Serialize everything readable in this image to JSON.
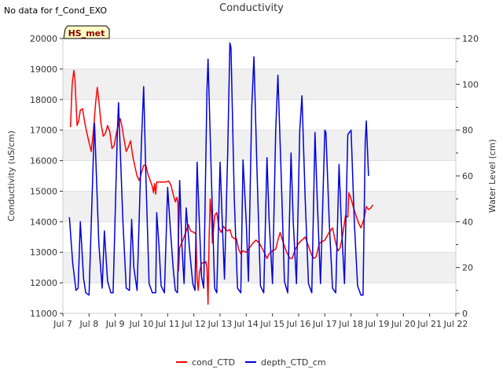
{
  "header": {
    "note": "No data for f_Cond_EXO",
    "title": "Conductivity"
  },
  "badge": {
    "label": "HS_met"
  },
  "colors": {
    "cond": "#ff0000",
    "depth": "#0000dd",
    "band": "#f0f0f0",
    "badge_fill": "#ffffc8",
    "badge_border": "#000000"
  },
  "chart_data": {
    "type": "line",
    "title": "Conductivity",
    "xlabel": "",
    "ylabel": "Conductivity (uS/cm)",
    "y2label": "Water Level (cm)",
    "xlim": [
      "2024-07-07",
      "2024-07-22"
    ],
    "ylim": [
      11000,
      20000
    ],
    "y2lim": [
      0,
      120
    ],
    "x_ticks": [
      "Jul 7",
      "Jul 8",
      "Jul 9",
      "Jul 10",
      "Jul 11",
      "Jul 12",
      "Jul 13",
      "Jul 14",
      "Jul 15",
      "Jul 16",
      "Jul 17",
      "Jul 18",
      "Jul 19",
      "Jul 20",
      "Jul 21",
      "Jul 22"
    ],
    "y_ticks": [
      "11000",
      "12000",
      "13000",
      "14000",
      "15000",
      "16000",
      "17000",
      "18000",
      "19000",
      "20000"
    ],
    "y2_ticks": [
      "0",
      "20",
      "40",
      "60",
      "80",
      "100",
      "120"
    ],
    "grid": true,
    "legend": "bottom-center",
    "series": [
      {
        "name": "cond_CTD",
        "axis": "left",
        "points": [
          [
            "2024-07-07 07:00",
            17100
          ],
          [
            "2024-07-07 08:30",
            18500
          ],
          [
            "2024-07-07 10:00",
            18950
          ],
          [
            "2024-07-07 11:00",
            18700
          ],
          [
            "2024-07-07 13:00",
            17150
          ],
          [
            "2024-07-07 14:30",
            17300
          ],
          [
            "2024-07-07 16:00",
            17650
          ],
          [
            "2024-07-07 18:00",
            17700
          ],
          [
            "2024-07-07 20:00",
            17250
          ],
          [
            "2024-07-07 22:00",
            16900
          ],
          [
            "2024-07-08 00:00",
            16600
          ],
          [
            "2024-07-08 02:00",
            16300
          ],
          [
            "2024-07-08 04:00",
            17000
          ],
          [
            "2024-07-08 06:00",
            17900
          ],
          [
            "2024-07-08 07:30",
            18400
          ],
          [
            "2024-07-08 09:00",
            17950
          ],
          [
            "2024-07-08 11:00",
            17200
          ],
          [
            "2024-07-08 13:00",
            16800
          ],
          [
            "2024-07-08 15:00",
            16900
          ],
          [
            "2024-07-08 17:00",
            17150
          ],
          [
            "2024-07-08 19:00",
            16950
          ],
          [
            "2024-07-08 21:00",
            16400
          ],
          [
            "2024-07-08 23:00",
            16500
          ],
          [
            "2024-07-09 01:00",
            16900
          ],
          [
            "2024-07-09 03:00",
            17200
          ],
          [
            "2024-07-09 04:30",
            17380
          ],
          [
            "2024-07-09 06:00",
            17150
          ],
          [
            "2024-07-09 08:00",
            16700
          ],
          [
            "2024-07-09 10:00",
            16300
          ],
          [
            "2024-07-09 12:00",
            16450
          ],
          [
            "2024-07-09 14:00",
            16650
          ],
          [
            "2024-07-09 16:00",
            16150
          ],
          [
            "2024-07-09 18:00",
            15800
          ],
          [
            "2024-07-09 20:00",
            15500
          ],
          [
            "2024-07-09 22:00",
            15350
          ],
          [
            "2024-07-10 00:00",
            15600
          ],
          [
            "2024-07-10 02:00",
            15850
          ],
          [
            "2024-07-10 04:00",
            15850
          ],
          [
            "2024-07-10 06:00",
            15550
          ],
          [
            "2024-07-10 08:00",
            15350
          ],
          [
            "2024-07-10 10:00",
            15150
          ],
          [
            "2024-07-10 11:00",
            14950
          ],
          [
            "2024-07-10 12:00",
            15250
          ],
          [
            "2024-07-10 13:00",
            14900
          ],
          [
            "2024-07-10 14:00",
            15300
          ],
          [
            "2024-07-10 18:00",
            15300
          ],
          [
            "2024-07-10 22:00",
            15300
          ],
          [
            "2024-07-11 01:00",
            15330
          ],
          [
            "2024-07-11 03:00",
            15200
          ],
          [
            "2024-07-11 05:00",
            14900
          ],
          [
            "2024-07-11 07:00",
            14650
          ],
          [
            "2024-07-11 08:30",
            14800
          ],
          [
            "2024-07-11 09:30",
            14600
          ],
          [
            "2024-07-11 10:00",
            12400
          ],
          [
            "2024-07-11 11:00",
            13150
          ],
          [
            "2024-07-11 14:00",
            13400
          ],
          [
            "2024-07-11 17:00",
            13700
          ],
          [
            "2024-07-11 19:00",
            13900
          ],
          [
            "2024-07-11 21:00",
            13700
          ],
          [
            "2024-07-12 00:00",
            13650
          ],
          [
            "2024-07-12 02:00",
            13600
          ],
          [
            "2024-07-12 03:00",
            12100
          ],
          [
            "2024-07-12 04:00",
            11750
          ],
          [
            "2024-07-12 05:00",
            12300
          ],
          [
            "2024-07-12 07:00",
            12650
          ],
          [
            "2024-07-12 10:00",
            12650
          ],
          [
            "2024-07-12 11:00",
            12700
          ],
          [
            "2024-07-12 12:00",
            12500
          ],
          [
            "2024-07-12 13:00",
            11300
          ],
          [
            "2024-07-12 14:00",
            13500
          ],
          [
            "2024-07-12 15:00",
            14750
          ],
          [
            "2024-07-12 16:00",
            14300
          ],
          [
            "2024-07-12 17:00",
            13300
          ],
          [
            "2024-07-12 19:00",
            14200
          ],
          [
            "2024-07-12 21:00",
            14300
          ],
          [
            "2024-07-12 23:00",
            13800
          ],
          [
            "2024-07-13 01:00",
            13650
          ],
          [
            "2024-07-13 03:00",
            13850
          ],
          [
            "2024-07-13 05:00",
            13750
          ],
          [
            "2024-07-13 07:00",
            13700
          ],
          [
            "2024-07-13 09:00",
            13750
          ],
          [
            "2024-07-13 11:00",
            13500
          ],
          [
            "2024-07-13 13:00",
            13450
          ],
          [
            "2024-07-13 15:00",
            13450
          ],
          [
            "2024-07-13 17:00",
            13100
          ],
          [
            "2024-07-13 19:00",
            12950
          ],
          [
            "2024-07-13 21:00",
            13050
          ],
          [
            "2024-07-14 00:00",
            13000
          ],
          [
            "2024-07-14 03:00",
            13150
          ],
          [
            "2024-07-14 06:00",
            13300
          ],
          [
            "2024-07-14 09:00",
            13400
          ],
          [
            "2024-07-14 12:00",
            13300
          ],
          [
            "2024-07-14 15:00",
            13100
          ],
          [
            "2024-07-14 17:00",
            12950
          ],
          [
            "2024-07-14 19:00",
            12800
          ],
          [
            "2024-07-14 21:00",
            12950
          ],
          [
            "2024-07-15 00:00",
            13050
          ],
          [
            "2024-07-15 03:00",
            13100
          ],
          [
            "2024-07-15 05:00",
            13400
          ],
          [
            "2024-07-15 07:00",
            13650
          ],
          [
            "2024-07-15 10:00",
            13300
          ],
          [
            "2024-07-15 13:00",
            13000
          ],
          [
            "2024-07-15 16:00",
            12800
          ],
          [
            "2024-07-15 18:00",
            12800
          ],
          [
            "2024-07-15 21:00",
            13100
          ],
          [
            "2024-07-16 00:00",
            13300
          ],
          [
            "2024-07-16 03:00",
            13400
          ],
          [
            "2024-07-16 06:00",
            13500
          ],
          [
            "2024-07-16 09:00",
            13200
          ],
          [
            "2024-07-16 12:00",
            12900
          ],
          [
            "2024-07-16 14:00",
            12800
          ],
          [
            "2024-07-16 16:00",
            12850
          ],
          [
            "2024-07-16 19:00",
            13300
          ],
          [
            "2024-07-17 00:00",
            13400
          ],
          [
            "2024-07-17 04:00",
            13650
          ],
          [
            "2024-07-17 07:00",
            13800
          ],
          [
            "2024-07-17 10:00",
            13300
          ],
          [
            "2024-07-17 12:00",
            13050
          ],
          [
            "2024-07-17 14:00",
            13150
          ],
          [
            "2024-07-17 16:00",
            13500
          ],
          [
            "2024-07-17 19:00",
            14200
          ],
          [
            "2024-07-17 21:00",
            14150
          ],
          [
            "2024-07-17 22:00",
            14950
          ],
          [
            "2024-07-18 00:00",
            14750
          ],
          [
            "2024-07-18 02:00",
            14500
          ],
          [
            "2024-07-18 05:00",
            14150
          ],
          [
            "2024-07-18 07:00",
            13950
          ],
          [
            "2024-07-18 09:00",
            13800
          ],
          [
            "2024-07-18 12:00",
            14100
          ],
          [
            "2024-07-18 14:00",
            14500
          ],
          [
            "2024-07-18 16:00",
            14400
          ],
          [
            "2024-07-18 18:00",
            14450
          ],
          [
            "2024-07-18 20:00",
            14550
          ]
        ]
      },
      {
        "name": "depth_CTD_cm",
        "axis": "right",
        "points": [
          [
            "2024-07-07 06:00",
            42
          ],
          [
            "2024-07-07 09:00",
            22
          ],
          [
            "2024-07-07 12:00",
            10
          ],
          [
            "2024-07-07 14:00",
            11
          ],
          [
            "2024-07-07 16:00",
            40
          ],
          [
            "2024-07-07 19:00",
            15
          ],
          [
            "2024-07-07 21:00",
            9
          ],
          [
            "2024-07-08 00:00",
            8
          ],
          [
            "2024-07-08 04:00",
            70
          ],
          [
            "2024-07-08 05:00",
            83
          ],
          [
            "2024-07-08 09:00",
            30
          ],
          [
            "2024-07-08 12:00",
            11
          ],
          [
            "2024-07-08 14:00",
            36
          ],
          [
            "2024-07-08 17:00",
            14
          ],
          [
            "2024-07-08 20:00",
            9
          ],
          [
            "2024-07-08 22:00",
            9
          ],
          [
            "2024-07-09 02:00",
            80
          ],
          [
            "2024-07-09 03:00",
            92
          ],
          [
            "2024-07-09 07:00",
            40
          ],
          [
            "2024-07-09 10:00",
            11
          ],
          [
            "2024-07-09 13:00",
            10
          ],
          [
            "2024-07-09 15:00",
            41
          ],
          [
            "2024-07-09 17:00",
            20
          ],
          [
            "2024-07-09 20:00",
            10
          ],
          [
            "2024-07-10 00:00",
            75
          ],
          [
            "2024-07-10 02:00",
            99
          ],
          [
            "2024-07-10 04:00",
            60
          ],
          [
            "2024-07-10 07:00",
            13
          ],
          [
            "2024-07-10 10:00",
            9
          ],
          [
            "2024-07-10 13:00",
            9
          ],
          [
            "2024-07-10 14:00",
            44
          ],
          [
            "2024-07-10 16:00",
            30
          ],
          [
            "2024-07-10 18:00",
            12
          ],
          [
            "2024-07-10 21:00",
            9
          ],
          [
            "2024-07-11 00:00",
            55
          ],
          [
            "2024-07-11 02:00",
            40
          ],
          [
            "2024-07-11 05:00",
            20
          ],
          [
            "2024-07-11 07:00",
            10
          ],
          [
            "2024-07-11 09:00",
            9
          ],
          [
            "2024-07-11 11:00",
            58
          ],
          [
            "2024-07-11 13:00",
            30
          ],
          [
            "2024-07-11 15:00",
            13
          ],
          [
            "2024-07-11 17:00",
            46
          ],
          [
            "2024-07-11 20:00",
            28
          ],
          [
            "2024-07-11 23:00",
            13
          ],
          [
            "2024-07-12 01:00",
            10
          ],
          [
            "2024-07-12 03:00",
            66
          ],
          [
            "2024-07-12 05:00",
            40
          ],
          [
            "2024-07-12 07:00",
            16
          ],
          [
            "2024-07-12 09:00",
            11
          ],
          [
            "2024-07-12 12:00",
            97
          ],
          [
            "2024-07-12 13:00",
            111
          ],
          [
            "2024-07-12 16:00",
            60
          ],
          [
            "2024-07-12 19:00",
            11
          ],
          [
            "2024-07-12 21:00",
            9
          ],
          [
            "2024-07-13 00:00",
            66
          ],
          [
            "2024-07-13 02:00",
            40
          ],
          [
            "2024-07-13 04:00",
            15
          ],
          [
            "2024-07-13 07:00",
            70
          ],
          [
            "2024-07-13 09:00",
            118
          ],
          [
            "2024-07-13 10:00",
            116
          ],
          [
            "2024-07-13 13:00",
            50
          ],
          [
            "2024-07-13 16:00",
            11
          ],
          [
            "2024-07-13 19:00",
            9
          ],
          [
            "2024-07-13 21:00",
            67
          ],
          [
            "2024-07-14 00:00",
            40
          ],
          [
            "2024-07-14 02:00",
            14
          ],
          [
            "2024-07-14 05:00",
            90
          ],
          [
            "2024-07-14 07:00",
            112
          ],
          [
            "2024-07-14 10:00",
            60
          ],
          [
            "2024-07-14 13:00",
            12
          ],
          [
            "2024-07-14 16:00",
            9
          ],
          [
            "2024-07-14 19:00",
            68
          ],
          [
            "2024-07-14 21:00",
            40
          ],
          [
            "2024-07-15 00:00",
            13
          ],
          [
            "2024-07-15 03:00",
            80
          ],
          [
            "2024-07-15 05:00",
            104
          ],
          [
            "2024-07-15 08:00",
            60
          ],
          [
            "2024-07-15 11:00",
            14
          ],
          [
            "2024-07-15 14:00",
            9
          ],
          [
            "2024-07-15 17:00",
            70
          ],
          [
            "2024-07-15 19:00",
            40
          ],
          [
            "2024-07-15 22:00",
            13
          ],
          [
            "2024-07-16 01:00",
            80
          ],
          [
            "2024-07-16 03:00",
            95
          ],
          [
            "2024-07-16 06:00",
            50
          ],
          [
            "2024-07-16 09:00",
            13
          ],
          [
            "2024-07-16 12:00",
            9
          ],
          [
            "2024-07-16 15:00",
            79
          ],
          [
            "2024-07-16 17:00",
            50
          ],
          [
            "2024-07-16 20:00",
            13
          ],
          [
            "2024-07-17 00:00",
            80
          ],
          [
            "2024-07-17 01:00",
            79
          ],
          [
            "2024-07-17 04:00",
            40
          ],
          [
            "2024-07-17 07:00",
            11
          ],
          [
            "2024-07-17 10:00",
            9
          ],
          [
            "2024-07-17 13:00",
            65
          ],
          [
            "2024-07-17 15:00",
            40
          ],
          [
            "2024-07-17 18:00",
            13
          ],
          [
            "2024-07-17 21:00",
            78
          ],
          [
            "2024-07-18 00:00",
            80
          ],
          [
            "2024-07-18 03:00",
            40
          ],
          [
            "2024-07-18 06:00",
            12
          ],
          [
            "2024-07-18 09:00",
            8
          ],
          [
            "2024-07-18 11:00",
            8
          ],
          [
            "2024-07-18 13:00",
            75
          ],
          [
            "2024-07-18 14:00",
            84
          ],
          [
            "2024-07-18 16:00",
            60
          ]
        ]
      }
    ]
  }
}
